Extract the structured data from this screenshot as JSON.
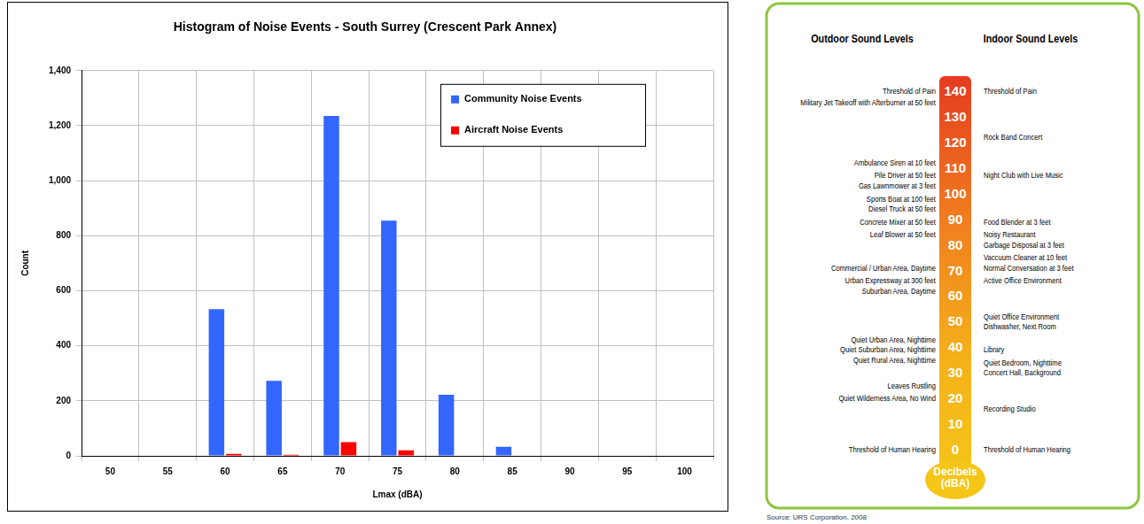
{
  "chart_data": {
    "type": "bar",
    "title": "Histogram of Noise Events - South Surrey (Crescent Park Annex)",
    "x_label": "Lmax (dBA)",
    "y_label": "Count",
    "categories": [
      "50",
      "55",
      "60",
      "65",
      "70",
      "75",
      "80",
      "85",
      "90",
      "95",
      "100"
    ],
    "series": [
      {
        "name": "Community Noise Events",
        "color": "#3366ff",
        "values": [
          0,
          2,
          533,
          273,
          1235,
          855,
          222,
          33,
          2,
          2,
          2
        ]
      },
      {
        "name": "Aircraft Noise Events",
        "color": "#ff0000",
        "values": [
          0,
          0,
          7,
          4,
          50,
          20,
          2,
          0,
          0,
          0,
          0
        ]
      }
    ],
    "ylim": [
      0,
      1400
    ],
    "yticks": [
      0,
      200,
      400,
      600,
      800,
      {
        "value": 1000,
        "label": "1,000"
      },
      {
        "value": 1200,
        "label": "1,200"
      },
      {
        "value": 1400,
        "label": "1,400"
      }
    ],
    "grid": true,
    "legend": "upper right"
  },
  "sound_scale": {
    "outdoor_title": "Outdoor Sound Levels",
    "indoor_title": "Indoor Sound Levels",
    "scale_label": "Decibels (dBA)",
    "scale_ticks": [
      0,
      10,
      20,
      30,
      40,
      50,
      60,
      70,
      80,
      90,
      100,
      110,
      120,
      130,
      140
    ],
    "outdoor": [
      {
        "text": "Threshold of Pain",
        "dba": 140
      },
      {
        "text": "Military Jet Takeoff with Afterburner at 50 feet",
        "dba": 135.5
      },
      {
        "text": "Ambulance Siren at 10 feet",
        "dba": 112
      },
      {
        "text": "Pile Driver at 50 feet",
        "dba": 107
      },
      {
        "text": "Gas Lawnmower at 3 feet",
        "dba": 103
      },
      {
        "text": "Sports Boat at 100 feet",
        "dba": 98
      },
      {
        "text": "Diesel Truck at 50 feet",
        "dba": 94
      },
      {
        "text": "Concrete Mixer at 50 feet",
        "dba": 89
      },
      {
        "text": "Leaf Blower at 50 feet",
        "dba": 84
      },
      {
        "text": "Commercial / Urban Area, Daytime",
        "dba": 71
      },
      {
        "text": "Urban Expressway at 300 feet",
        "dba": 66
      },
      {
        "text": "Suburban Area, Daytime",
        "dba": 62
      },
      {
        "text": "Quiet Urban Area, Nighttime",
        "dba": 43
      },
      {
        "text": "Quiet Suburban Area, Nighttime",
        "dba": 39
      },
      {
        "text": "Quiet Rural Area, Nighttime",
        "dba": 35
      },
      {
        "text": "Leaves Rustling",
        "dba": 25
      },
      {
        "text": "Quiet Wilderness Area, No Wind",
        "dba": 20
      },
      {
        "text": "Threshold of Human Hearing",
        "dba": 0
      }
    ],
    "indoor": [
      {
        "text": "Threshold of Pain",
        "dba": 140
      },
      {
        "text": "Rock Band Concert",
        "dba": 122
      },
      {
        "text": "Night Club with Live Music",
        "dba": 107
      },
      {
        "text": "Food Blender at 3 feet",
        "dba": 89
      },
      {
        "text": "Noisy Restaurant",
        "dba": 84
      },
      {
        "text": "Garbage Disposal at 3 feet",
        "dba": 80
      },
      {
        "text": "Vaccuum Cleaner at 10 feet",
        "dba": 75
      },
      {
        "text": "Normal Conversation at 3 feet",
        "dba": 71
      },
      {
        "text": "Active Office Environment",
        "dba": 66
      },
      {
        "text": "Quiet Office Environment",
        "dba": 52
      },
      {
        "text": "Dishwasher, Next Room",
        "dba": 48
      },
      {
        "text": "Library",
        "dba": 39
      },
      {
        "text": "Quiet Bedroom, Nighttime",
        "dba": 34
      },
      {
        "text": "Concert Hall, Background",
        "dba": 30
      },
      {
        "text": "Recording Studio",
        "dba": 16
      },
      {
        "text": "Threshold of Human Hearing",
        "dba": 0
      }
    ],
    "source": "Source: URS Corporation, 2008"
  }
}
